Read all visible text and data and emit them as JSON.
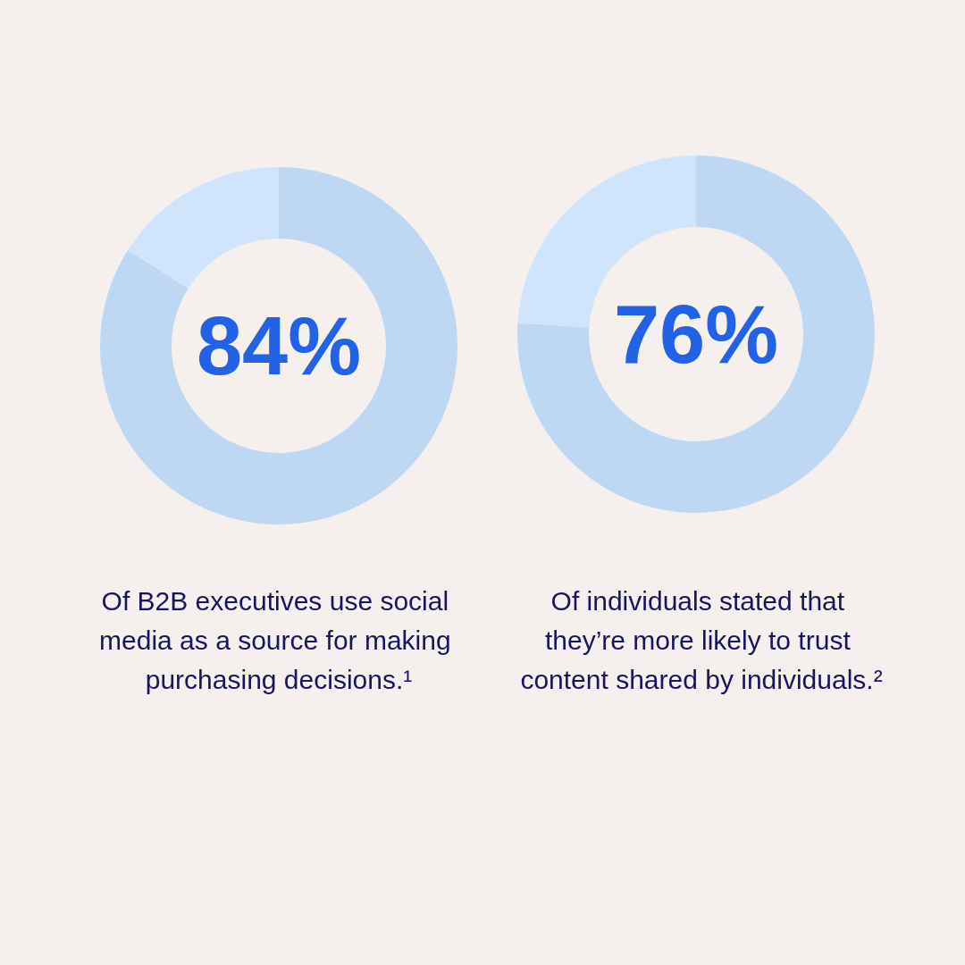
{
  "chart_data": [
    {
      "type": "donut",
      "categories": [
        null,
        null
      ],
      "values": [
        84,
        16
      ],
      "colors": [
        "#bed8f4",
        "#d0e4fc"
      ],
      "value_labels": [
        "84%",
        null
      ],
      "annotations": [
        "Of B2B executives use social media as a source for making purchasing decisions.¹"
      ]
    },
    {
      "type": "donut",
      "categories": [
        null,
        null
      ],
      "values": [
        76,
        24
      ],
      "colors": [
        "#bed8f4",
        "#d0e4fc"
      ],
      "value_labels": [
        "76%",
        null
      ],
      "annotations": [
        "Of individuals stated that they’re more likely to trust content shared by individuals.²"
      ]
    }
  ]
}
